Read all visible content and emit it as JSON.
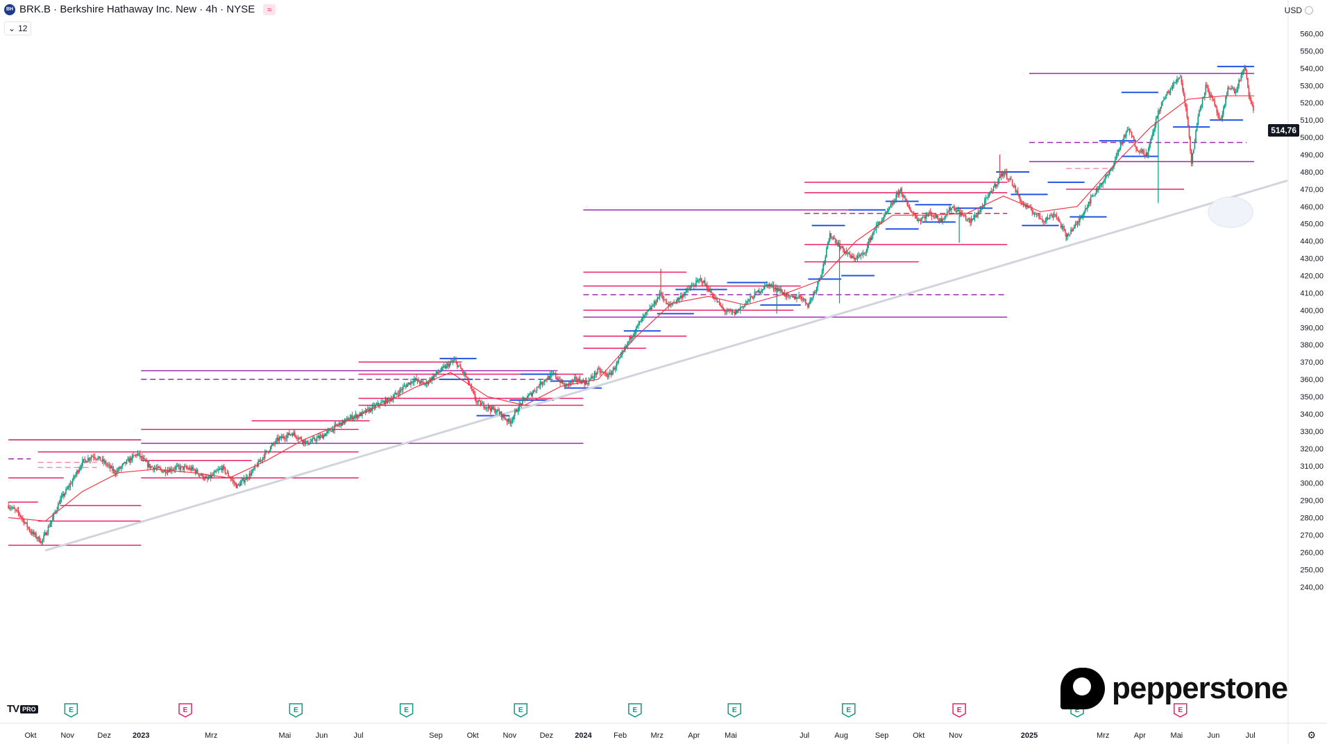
{
  "header": {
    "symbol_logo": "BH",
    "title": "BRK.B · Berkshire Hathaway Inc. New · 4h · NYSE",
    "flag_icon": "waves-icon",
    "indicator_chip": "12",
    "currency": "USD"
  },
  "chart_data": {
    "type": "candlestick",
    "symbol": "BRK.B",
    "interval": "4h",
    "exchange": "NYSE",
    "last_price": 514.76,
    "last_price_label": "514,76",
    "y_range": [
      235,
      567
    ],
    "y_ticks": [
      "560,00",
      "550,00",
      "540,00",
      "530,00",
      "520,00",
      "510,00",
      "500,00",
      "490,00",
      "480,00",
      "470,00",
      "460,00",
      "450,00",
      "440,00",
      "430,00",
      "420,00",
      "410,00",
      "400,00",
      "390,00",
      "380,00",
      "370,00",
      "360,00",
      "350,00",
      "340,00",
      "330,00",
      "320,00",
      "310,00",
      "300,00",
      "290,00",
      "280,00",
      "270,00",
      "260,00",
      "250,00",
      "240,00"
    ],
    "x_ticks": [
      {
        "label": "Okt",
        "t": 0.6,
        "bold": false
      },
      {
        "label": "Nov",
        "t": 1.6,
        "bold": false
      },
      {
        "label": "Dez",
        "t": 2.6,
        "bold": false
      },
      {
        "label": "2023",
        "t": 3.6,
        "bold": true
      },
      {
        "label": "Mrz",
        "t": 5.5,
        "bold": false
      },
      {
        "label": "Mai",
        "t": 7.5,
        "bold": false
      },
      {
        "label": "Jun",
        "t": 8.5,
        "bold": false
      },
      {
        "label": "Jul",
        "t": 9.5,
        "bold": false
      },
      {
        "label": "Sep",
        "t": 11.6,
        "bold": false
      },
      {
        "label": "Okt",
        "t": 12.6,
        "bold": false
      },
      {
        "label": "Nov",
        "t": 13.6,
        "bold": false
      },
      {
        "label": "Dez",
        "t": 14.6,
        "bold": false
      },
      {
        "label": "2024",
        "t": 15.6,
        "bold": true
      },
      {
        "label": "Feb",
        "t": 16.6,
        "bold": false
      },
      {
        "label": "Mrz",
        "t": 17.6,
        "bold": false
      },
      {
        "label": "Apr",
        "t": 18.6,
        "bold": false
      },
      {
        "label": "Mai",
        "t": 19.6,
        "bold": false
      },
      {
        "label": "Jul",
        "t": 21.6,
        "bold": false
      },
      {
        "label": "Aug",
        "t": 22.6,
        "bold": false
      },
      {
        "label": "Sep",
        "t": 23.7,
        "bold": false
      },
      {
        "label": "Okt",
        "t": 24.7,
        "bold": false
      },
      {
        "label": "Nov",
        "t": 25.7,
        "bold": false
      },
      {
        "label": "2025",
        "t": 27.7,
        "bold": true
      },
      {
        "label": "Mrz",
        "t": 29.7,
        "bold": false
      },
      {
        "label": "Apr",
        "t": 30.7,
        "bold": false
      },
      {
        "label": "Mai",
        "t": 31.7,
        "bold": false
      },
      {
        "label": "Jun",
        "t": 32.7,
        "bold": false
      },
      {
        "label": "Jul",
        "t": 33.7,
        "bold": false
      }
    ],
    "close_path": [
      [
        0,
        287
      ],
      [
        0.3,
        282
      ],
      [
        0.6,
        272
      ],
      [
        0.9,
        266
      ],
      [
        1.1,
        275
      ],
      [
        1.4,
        290
      ],
      [
        1.7,
        300
      ],
      [
        2,
        312
      ],
      [
        2.3,
        316
      ],
      [
        2.6,
        312
      ],
      [
        2.9,
        306
      ],
      [
        3.2,
        312
      ],
      [
        3.5,
        317
      ],
      [
        3.8,
        310
      ],
      [
        4.2,
        307
      ],
      [
        4.6,
        309
      ],
      [
        5,
        308
      ],
      [
        5.4,
        302
      ],
      [
        5.8,
        309
      ],
      [
        6.2,
        298
      ],
      [
        6.6,
        306
      ],
      [
        7,
        318
      ],
      [
        7.3,
        325
      ],
      [
        7.7,
        329
      ],
      [
        8.1,
        323
      ],
      [
        8.5,
        327
      ],
      [
        8.9,
        333
      ],
      [
        9.3,
        338
      ],
      [
        9.6,
        340
      ],
      [
        10,
        345
      ],
      [
        10.4,
        349
      ],
      [
        10.7,
        355
      ],
      [
        11,
        360
      ],
      [
        11.3,
        357
      ],
      [
        11.6,
        363
      ],
      [
        11.9,
        368
      ],
      [
        12.1,
        371
      ],
      [
        12.4,
        362
      ],
      [
        12.7,
        347
      ],
      [
        13,
        344
      ],
      [
        13.3,
        341
      ],
      [
        13.6,
        335
      ],
      [
        13.9,
        346
      ],
      [
        14.2,
        352
      ],
      [
        14.5,
        359
      ],
      [
        14.8,
        363
      ],
      [
        15.1,
        356
      ],
      [
        15.4,
        360
      ],
      [
        15.7,
        358
      ],
      [
        16,
        365
      ],
      [
        16.3,
        362
      ],
      [
        16.6,
        372
      ],
      [
        16.9,
        385
      ],
      [
        17.2,
        395
      ],
      [
        17.5,
        403
      ],
      [
        17.7,
        410
      ],
      [
        17.9,
        402
      ],
      [
        18.2,
        407
      ],
      [
        18.5,
        413
      ],
      [
        18.8,
        418
      ],
      [
        19.1,
        409
      ],
      [
        19.4,
        400
      ],
      [
        19.7,
        398
      ],
      [
        20,
        404
      ],
      [
        20.3,
        410
      ],
      [
        20.6,
        415
      ],
      [
        20.9,
        412
      ],
      [
        21.2,
        407
      ],
      [
        21.5,
        408
      ],
      [
        21.7,
        403
      ],
      [
        21.9,
        412
      ],
      [
        22.1,
        425
      ],
      [
        22.3,
        444
      ],
      [
        22.6,
        436
      ],
      [
        22.9,
        430
      ],
      [
        23.2,
        432
      ],
      [
        23.5,
        447
      ],
      [
        23.8,
        455
      ],
      [
        24,
        462
      ],
      [
        24.2,
        470
      ],
      [
        24.4,
        460
      ],
      [
        24.7,
        452
      ],
      [
        25,
        456
      ],
      [
        25.3,
        452
      ],
      [
        25.6,
        460
      ],
      [
        25.9,
        455
      ],
      [
        26.1,
        451
      ],
      [
        26.4,
        459
      ],
      [
        26.7,
        470
      ],
      [
        27,
        480
      ],
      [
        27.2,
        475
      ],
      [
        27.5,
        462
      ],
      [
        27.8,
        457
      ],
      [
        28.1,
        452
      ],
      [
        28.4,
        456
      ],
      [
        28.7,
        443
      ],
      [
        29,
        450
      ],
      [
        29.3,
        462
      ],
      [
        29.6,
        472
      ],
      [
        29.9,
        480
      ],
      [
        30.2,
        497
      ],
      [
        30.4,
        505
      ],
      [
        30.6,
        494
      ],
      [
        30.9,
        490
      ],
      [
        31.2,
        515
      ],
      [
        31.4,
        524
      ],
      [
        31.6,
        530
      ],
      [
        31.8,
        536
      ],
      [
        32,
        510
      ],
      [
        32.1,
        485
      ],
      [
        32.3,
        515
      ],
      [
        32.5,
        530
      ],
      [
        32.7,
        520
      ],
      [
        32.9,
        508
      ],
      [
        33.1,
        530
      ],
      [
        33.3,
        526
      ],
      [
        33.45,
        536
      ],
      [
        33.55,
        540
      ],
      [
        33.7,
        520
      ],
      [
        33.8,
        514.76
      ]
    ],
    "moving_average": [
      [
        0,
        280
      ],
      [
        1,
        278
      ],
      [
        2,
        295
      ],
      [
        3,
        306
      ],
      [
        4,
        308
      ],
      [
        5,
        306
      ],
      [
        6,
        303
      ],
      [
        7,
        313
      ],
      [
        8,
        325
      ],
      [
        9,
        334
      ],
      [
        10,
        344
      ],
      [
        11,
        355
      ],
      [
        12,
        364
      ],
      [
        13,
        350
      ],
      [
        14,
        345
      ],
      [
        15,
        356
      ],
      [
        16,
        360
      ],
      [
        17,
        384
      ],
      [
        18,
        404
      ],
      [
        19,
        408
      ],
      [
        20,
        403
      ],
      [
        21,
        409
      ],
      [
        22,
        417
      ],
      [
        23,
        440
      ],
      [
        24,
        455
      ],
      [
        25,
        455
      ],
      [
        26,
        456
      ],
      [
        27,
        466
      ],
      [
        28,
        457
      ],
      [
        29,
        460
      ],
      [
        30,
        484
      ],
      [
        31,
        506
      ],
      [
        32,
        522
      ],
      [
        33,
        524
      ],
      [
        33.8,
        524
      ]
    ],
    "trendline": {
      "start": [
        1,
        261
      ],
      "end": [
        36.5,
        475
      ],
      "color": "#d1d4dc"
    },
    "horizontal_levels": [
      {
        "y": 325,
        "t0": 0,
        "t1": 3.6,
        "color": "#c2185b",
        "style": "solid"
      },
      {
        "y": 314,
        "t0": 0,
        "t1": 0.6,
        "color": "#9c27b0",
        "style": "dashed"
      },
      {
        "y": 303,
        "t0": 0,
        "t1": 1.5,
        "color": "#e91e63",
        "style": "solid"
      },
      {
        "y": 289,
        "t0": 0,
        "t1": 0.8,
        "color": "#e91e63",
        "style": "solid"
      },
      {
        "y": 264,
        "t0": 0,
        "t1": 3.6,
        "color": "#e91e63",
        "style": "solid"
      },
      {
        "y": 278,
        "t0": 0.8,
        "t1": 3.6,
        "color": "#e91e63",
        "style": "solid"
      },
      {
        "y": 287,
        "t0": 1.4,
        "t1": 3.6,
        "color": "#e91e63",
        "style": "solid"
      },
      {
        "y": 318,
        "t0": 0.8,
        "t1": 3.6,
        "color": "#e91e63",
        "style": "solid"
      },
      {
        "y": 312,
        "t0": 0.8,
        "t1": 2.4,
        "color": "#f48fb1",
        "style": "dashed"
      },
      {
        "y": 309,
        "t0": 0.8,
        "t1": 2.4,
        "color": "#f48fb1",
        "style": "dashed"
      },
      {
        "y": 365,
        "t0": 3.6,
        "t1": 14.9,
        "color": "#9c27b0",
        "style": "solid"
      },
      {
        "y": 360,
        "t0": 3.6,
        "t1": 14.9,
        "color": "#9c27b0",
        "style": "dashed"
      },
      {
        "y": 331,
        "t0": 3.6,
        "t1": 9.5,
        "color": "#e91e63",
        "style": "solid"
      },
      {
        "y": 323,
        "t0": 3.6,
        "t1": 15.6,
        "color": "#9c27b0",
        "style": "solid"
      },
      {
        "y": 318,
        "t0": 3.6,
        "t1": 9.5,
        "color": "#e91e63",
        "style": "solid"
      },
      {
        "y": 303,
        "t0": 3.6,
        "t1": 9.5,
        "color": "#e91e63",
        "style": "solid"
      },
      {
        "y": 313,
        "t0": 3.6,
        "t1": 6.6,
        "color": "#e91e63",
        "style": "solid"
      },
      {
        "y": 336,
        "t0": 6.6,
        "t1": 9.8,
        "color": "#e91e63",
        "style": "solid"
      },
      {
        "y": 370,
        "t0": 9.5,
        "t1": 12.3,
        "color": "#e91e63",
        "style": "solid"
      },
      {
        "y": 363,
        "t0": 9.5,
        "t1": 15.6,
        "color": "#e91e63",
        "style": "solid"
      },
      {
        "y": 349,
        "t0": 9.5,
        "t1": 15.6,
        "color": "#e91e63",
        "style": "solid"
      },
      {
        "y": 345,
        "t0": 9.5,
        "t1": 15.6,
        "color": "#e91e63",
        "style": "solid"
      },
      {
        "y": 458,
        "t0": 15.6,
        "t1": 22.9,
        "color": "#9c27b0",
        "style": "solid"
      },
      {
        "y": 422,
        "t0": 15.6,
        "t1": 18.4,
        "color": "#e91e63",
        "style": "solid"
      },
      {
        "y": 409,
        "t0": 15.6,
        "t1": 27.1,
        "color": "#9c27b0",
        "style": "dashed"
      },
      {
        "y": 400,
        "t0": 15.6,
        "t1": 21.3,
        "color": "#e91e63",
        "style": "solid"
      },
      {
        "y": 396,
        "t0": 15.6,
        "t1": 27.1,
        "color": "#9c27b0",
        "style": "solid"
      },
      {
        "y": 385,
        "t0": 15.6,
        "t1": 18.4,
        "color": "#e91e63",
        "style": "solid"
      },
      {
        "y": 378,
        "t0": 15.6,
        "t1": 17.3,
        "color": "#e91e63",
        "style": "solid"
      },
      {
        "y": 414,
        "t0": 15.6,
        "t1": 21.5,
        "color": "#e91e63",
        "style": "solid"
      },
      {
        "y": 474,
        "t0": 21.6,
        "t1": 27.1,
        "color": "#e91e63",
        "style": "solid"
      },
      {
        "y": 468,
        "t0": 21.6,
        "t1": 27.1,
        "color": "#e91e63",
        "style": "solid"
      },
      {
        "y": 456,
        "t0": 21.6,
        "t1": 27.1,
        "color": "#e91e63",
        "style": "dashed"
      },
      {
        "y": 438,
        "t0": 21.6,
        "t1": 27.1,
        "color": "#e91e63",
        "style": "solid"
      },
      {
        "y": 428,
        "t0": 21.6,
        "t1": 24.7,
        "color": "#e91e63",
        "style": "solid"
      },
      {
        "y": 537,
        "t0": 27.7,
        "t1": 33.8,
        "color": "#9c27b0",
        "style": "solid"
      },
      {
        "y": 497,
        "t0": 27.7,
        "t1": 33.6,
        "color": "#9c27b0",
        "style": "dashed"
      },
      {
        "y": 486,
        "t0": 27.7,
        "t1": 33.8,
        "color": "#9c27b0",
        "style": "solid"
      },
      {
        "y": 470,
        "t0": 28.7,
        "t1": 31.9,
        "color": "#e91e63",
        "style": "solid"
      },
      {
        "y": 482,
        "t0": 28.7,
        "t1": 29.9,
        "color": "#f48fb1",
        "style": "dashed"
      }
    ],
    "blue_levels": [
      {
        "y": 372,
        "t0": 11.7,
        "t1": 12.7
      },
      {
        "y": 360,
        "t0": 11.7,
        "t1": 12.6
      },
      {
        "y": 339,
        "t0": 12.7,
        "t1": 13.6
      },
      {
        "y": 348,
        "t0": 13.6,
        "t1": 14.8
      },
      {
        "y": 363,
        "t0": 13.9,
        "t1": 14.9
      },
      {
        "y": 359,
        "t0": 14.7,
        "t1": 15.7
      },
      {
        "y": 355,
        "t0": 15.1,
        "t1": 16.1
      },
      {
        "y": 388,
        "t0": 16.7,
        "t1": 17.7
      },
      {
        "y": 398,
        "t0": 17.6,
        "t1": 18.6
      },
      {
        "y": 412,
        "t0": 18.1,
        "t1": 19.5
      },
      {
        "y": 416,
        "t0": 19.5,
        "t1": 20.6
      },
      {
        "y": 403,
        "t0": 20.4,
        "t1": 21.5
      },
      {
        "y": 449,
        "t0": 21.8,
        "t1": 22.7
      },
      {
        "y": 418,
        "t0": 21.7,
        "t1": 22.6
      },
      {
        "y": 420,
        "t0": 22.6,
        "t1": 23.5
      },
      {
        "y": 458,
        "t0": 22.8,
        "t1": 23.8
      },
      {
        "y": 463,
        "t0": 23.8,
        "t1": 24.7
      },
      {
        "y": 447,
        "t0": 23.8,
        "t1": 24.7
      },
      {
        "y": 461,
        "t0": 24.6,
        "t1": 25.6
      },
      {
        "y": 451,
        "t0": 24.8,
        "t1": 25.7
      },
      {
        "y": 459,
        "t0": 25.7,
        "t1": 26.7
      },
      {
        "y": 480,
        "t0": 26.8,
        "t1": 27.7
      },
      {
        "y": 467,
        "t0": 27.2,
        "t1": 28.2
      },
      {
        "y": 449,
        "t0": 27.5,
        "t1": 28.5
      },
      {
        "y": 474,
        "t0": 28.2,
        "t1": 29.2
      },
      {
        "y": 454,
        "t0": 28.8,
        "t1": 29.8
      },
      {
        "y": 498,
        "t0": 29.6,
        "t1": 30.6
      },
      {
        "y": 526,
        "t0": 30.2,
        "t1": 31.2
      },
      {
        "y": 489,
        "t0": 30.2,
        "t1": 31.2
      },
      {
        "y": 506,
        "t0": 31.6,
        "t1": 32.6
      },
      {
        "y": 510,
        "t0": 32.6,
        "t1": 33.5
      },
      {
        "y": 541,
        "t0": 32.8,
        "t1": 33.8
      }
    ],
    "earnings_markers": [
      {
        "t": 1.7,
        "label": "E",
        "color": "#089981"
      },
      {
        "t": 4.8,
        "label": "E",
        "color": "#e91e63"
      },
      {
        "t": 7.8,
        "label": "E",
        "color": "#089981"
      },
      {
        "t": 10.8,
        "label": "E",
        "color": "#089981"
      },
      {
        "t": 13.9,
        "label": "E",
        "color": "#089981"
      },
      {
        "t": 17.0,
        "label": "E",
        "color": "#089981"
      },
      {
        "t": 19.7,
        "label": "E",
        "color": "#089981"
      },
      {
        "t": 22.8,
        "label": "E",
        "color": "#089981"
      },
      {
        "t": 25.8,
        "label": "E",
        "color": "#e91e63"
      },
      {
        "t": 29.0,
        "label": "E",
        "color": "#089981"
      },
      {
        "t": 31.8,
        "label": "E",
        "color": "#e91e63"
      }
    ],
    "up_color": "#089981",
    "down_color": "#f23645",
    "ma_color": "#f23645"
  },
  "watermark": {
    "tv_logo": "TV",
    "tv_pro": "PRO",
    "broker": "pepperstone"
  },
  "settings_icon": "gear-icon"
}
